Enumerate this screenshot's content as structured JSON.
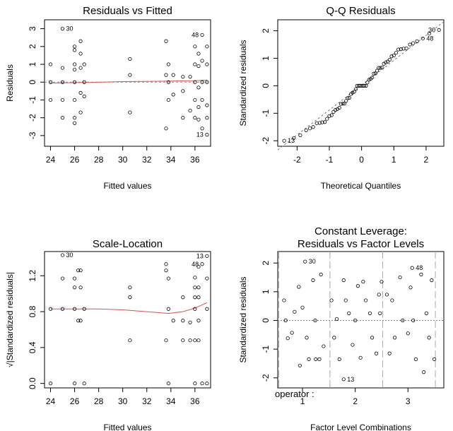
{
  "chart_data": [
    {
      "type": "scatter",
      "title": "Residuals vs Fitted",
      "xlabel": "Fitted values",
      "ylabel": "Residuals",
      "xlim": [
        23.5,
        37.3
      ],
      "ylim": [
        -3.6,
        3.5
      ],
      "xticks": [
        24,
        26,
        28,
        30,
        32,
        34,
        36
      ],
      "yticks": [
        -3,
        -2,
        -1,
        0,
        1,
        2,
        3
      ],
      "grid": false,
      "dashed_reference_y": 0,
      "smooth_line_color": "#d9534f",
      "labeled_points": [
        {
          "label": "30",
          "x": 25.0,
          "y": 3.0
        },
        {
          "label": "48",
          "x": 36.6,
          "y": 2.65
        },
        {
          "label": "13",
          "x": 37.0,
          "y": -2.95
        }
      ],
      "points": [
        [
          24,
          1.0
        ],
        [
          24,
          0.0
        ],
        [
          24,
          -1.0
        ],
        [
          25,
          3.0
        ],
        [
          25,
          0.8
        ],
        [
          25,
          0.0
        ],
        [
          25,
          -1.0
        ],
        [
          25,
          -2.0
        ],
        [
          26,
          2.0
        ],
        [
          26,
          1.8
        ],
        [
          26,
          1.0
        ],
        [
          26,
          0.7
        ],
        [
          26,
          0.0
        ],
        [
          26,
          -1.0
        ],
        [
          26,
          -2.0
        ],
        [
          26,
          -2.3
        ],
        [
          26.5,
          2.3
        ],
        [
          26.5,
          1.6
        ],
        [
          26.5,
          0.8
        ],
        [
          26.5,
          -0.6
        ],
        [
          26.5,
          -1.7
        ],
        [
          26.8,
          1.0
        ],
        [
          26.8,
          0.0
        ],
        [
          26.8,
          -0.8
        ],
        [
          30.6,
          1.3
        ],
        [
          30.6,
          0.4
        ],
        [
          30.6,
          -1.7
        ],
        [
          33.6,
          2.3
        ],
        [
          33.6,
          0.4
        ],
        [
          33.6,
          -2.6
        ],
        [
          33.8,
          1.0
        ],
        [
          33.8,
          0.0
        ],
        [
          33.8,
          -1.0
        ],
        [
          34.2,
          0.4
        ],
        [
          34.2,
          -0.7
        ],
        [
          35,
          0.3
        ],
        [
          35,
          -0.5
        ],
        [
          35,
          -2.0
        ],
        [
          35.6,
          0.3
        ],
        [
          35.6,
          -1.6
        ],
        [
          36,
          2.0
        ],
        [
          36,
          1.0
        ],
        [
          36,
          0.0
        ],
        [
          36,
          -1.0
        ],
        [
          36,
          -2.0
        ],
        [
          36.3,
          1.6
        ],
        [
          36.3,
          0.9
        ],
        [
          36.3,
          -0.3
        ],
        [
          36.3,
          -1.4
        ],
        [
          36.3,
          -2.1
        ],
        [
          36.6,
          2.65
        ],
        [
          36.6,
          1.2
        ],
        [
          36.6,
          0.0
        ],
        [
          36.6,
          -1.0
        ],
        [
          36.6,
          -2.6
        ],
        [
          37,
          2.0
        ],
        [
          37,
          1.0
        ],
        [
          37,
          0.0
        ],
        [
          37,
          -1.3
        ],
        [
          37,
          -2.0
        ],
        [
          37,
          -2.95
        ]
      ],
      "smooth_line": [
        [
          24,
          -0.05
        ],
        [
          27,
          -0.02
        ],
        [
          30,
          0.03
        ],
        [
          33,
          0.05
        ],
        [
          36,
          0.08
        ],
        [
          37,
          0.12
        ]
      ]
    },
    {
      "type": "scatter",
      "title": "Q-Q Residuals",
      "xlabel": "Theoretical Quantiles",
      "ylabel": "Standardized residuals",
      "xlim": [
        -2.6,
        2.55
      ],
      "ylim": [
        -2.2,
        2.4
      ],
      "xticks": [
        -2,
        -1,
        0,
        1,
        2
      ],
      "yticks": [
        -2,
        -1,
        0,
        1,
        2
      ],
      "grid": false,
      "reference_line": [
        [
          -2.6,
          -2.33
        ],
        [
          2.55,
          2.33
        ]
      ],
      "labeled_points": [
        {
          "label": "13",
          "x": -2.4,
          "y": -2.0
        },
        {
          "label": "48",
          "x": 1.9,
          "y": 1.72
        },
        {
          "label": "30",
          "x": 2.4,
          "y": 2.03
        }
      ],
      "points": [
        [
          -2.4,
          -2.0
        ],
        [
          -2.1,
          -1.9
        ],
        [
          -1.9,
          -1.8
        ],
        [
          -1.72,
          -1.62
        ],
        [
          -1.6,
          -1.55
        ],
        [
          -1.5,
          -1.5
        ],
        [
          -1.39,
          -1.36
        ],
        [
          -1.3,
          -1.35
        ],
        [
          -1.22,
          -1.33
        ],
        [
          -1.14,
          -1.32
        ],
        [
          -1.07,
          -1.2
        ],
        [
          -1.0,
          -1.1
        ],
        [
          -0.93,
          -1.07
        ],
        [
          -0.87,
          -0.95
        ],
        [
          -0.81,
          -0.88
        ],
        [
          -0.75,
          -0.85
        ],
        [
          -0.69,
          -0.8
        ],
        [
          -0.64,
          -0.66
        ],
        [
          -0.58,
          -0.65
        ],
        [
          -0.53,
          -0.65
        ],
        [
          -0.48,
          -0.55
        ],
        [
          -0.43,
          -0.45
        ],
        [
          -0.38,
          -0.44
        ],
        [
          -0.33,
          -0.3
        ],
        [
          -0.28,
          -0.25
        ],
        [
          -0.23,
          -0.22
        ],
        [
          -0.18,
          -0.12
        ],
        [
          -0.14,
          0.0
        ],
        [
          -0.09,
          0.0
        ],
        [
          -0.05,
          0.0
        ],
        [
          0.0,
          0.0
        ],
        [
          0.05,
          0.0
        ],
        [
          0.09,
          0.0
        ],
        [
          0.14,
          0.0
        ],
        [
          0.18,
          0.12
        ],
        [
          0.23,
          0.22
        ],
        [
          0.28,
          0.25
        ],
        [
          0.33,
          0.3
        ],
        [
          0.38,
          0.44
        ],
        [
          0.43,
          0.45
        ],
        [
          0.48,
          0.55
        ],
        [
          0.53,
          0.65
        ],
        [
          0.58,
          0.65
        ],
        [
          0.64,
          0.66
        ],
        [
          0.69,
          0.8
        ],
        [
          0.75,
          0.85
        ],
        [
          0.81,
          0.88
        ],
        [
          0.87,
          0.95
        ],
        [
          0.93,
          1.07
        ],
        [
          1.0,
          1.1
        ],
        [
          1.07,
          1.2
        ],
        [
          1.14,
          1.32
        ],
        [
          1.22,
          1.33
        ],
        [
          1.3,
          1.35
        ],
        [
          1.39,
          1.36
        ],
        [
          1.5,
          1.5
        ],
        [
          1.6,
          1.55
        ],
        [
          1.72,
          1.62
        ],
        [
          1.9,
          1.72
        ],
        [
          2.1,
          1.9
        ],
        [
          2.4,
          2.03
        ]
      ]
    },
    {
      "type": "scatter",
      "title": "Scale-Location",
      "xlabel": "Fitted values",
      "ylabel": "√|Standardized residuals|",
      "xlim": [
        23.5,
        37.3
      ],
      "ylim": [
        -0.05,
        1.47
      ],
      "xticks": [
        24,
        26,
        28,
        30,
        32,
        34,
        36
      ],
      "yticks": [
        0.0,
        0.4,
        0.8,
        1.2
      ],
      "grid": false,
      "smooth_line_color": "#d9534f",
      "labeled_points": [
        {
          "label": "30",
          "x": 25.0,
          "y": 1.43
        },
        {
          "label": "48",
          "x": 36.6,
          "y": 1.33
        },
        {
          "label": "13",
          "x": 37.0,
          "y": 1.42
        }
      ],
      "points": [
        [
          24,
          0.83
        ],
        [
          24,
          0.0
        ],
        [
          25,
          1.43
        ],
        [
          25,
          1.17
        ],
        [
          25,
          0.83
        ],
        [
          26,
          1.17
        ],
        [
          26,
          1.07
        ],
        [
          26,
          0.83
        ],
        [
          26,
          0.0
        ],
        [
          26.3,
          1.26
        ],
        [
          26.3,
          0.7
        ],
        [
          26.5,
          1.07
        ],
        [
          26.5,
          1.26
        ],
        [
          26.5,
          0.7
        ],
        [
          26.8,
          0.83
        ],
        [
          26.8,
          0.0
        ],
        [
          30.6,
          1.07
        ],
        [
          30.6,
          0.96
        ],
        [
          30.6,
          0.48
        ],
        [
          33.6,
          1.33
        ],
        [
          33.6,
          1.26
        ],
        [
          33.6,
          0.48
        ],
        [
          33.8,
          1.17
        ],
        [
          33.8,
          0.83
        ],
        [
          33.8,
          0.0
        ],
        [
          34.2,
          0.7
        ],
        [
          35,
          0.96
        ],
        [
          35,
          0.7
        ],
        [
          35,
          0.48
        ],
        [
          35.6,
          0.68
        ],
        [
          35.6,
          0.48
        ],
        [
          36,
          1.18
        ],
        [
          36,
          1.07
        ],
        [
          36,
          0.96
        ],
        [
          36,
          0.83
        ],
        [
          36,
          0.48
        ],
        [
          36,
          0.0
        ],
        [
          36.3,
          1.3
        ],
        [
          36.3,
          1.07
        ],
        [
          36.3,
          0.96
        ],
        [
          36.3,
          0.7
        ],
        [
          36.3,
          0.48
        ],
        [
          36.6,
          1.33
        ],
        [
          36.6,
          0.0
        ],
        [
          37,
          1.42
        ],
        [
          37,
          1.17
        ],
        [
          37,
          0.83
        ],
        [
          37,
          0.0
        ]
      ],
      "smooth_line": [
        [
          24,
          0.83
        ],
        [
          26,
          0.83
        ],
        [
          28,
          0.83
        ],
        [
          30,
          0.82
        ],
        [
          32,
          0.8
        ],
        [
          33.8,
          0.78
        ],
        [
          35,
          0.8
        ],
        [
          36,
          0.84
        ],
        [
          37,
          0.9
        ]
      ]
    },
    {
      "type": "scatter",
      "title": "Constant Leverage:",
      "subtitle": "Residuals vs Factor Levels",
      "xlabel": "Factor Level Combinations",
      "ylabel": "Standardized residuals",
      "factor_label": "operator :",
      "xlim": [
        0.53,
        3.68
      ],
      "ylim": [
        -2.35,
        2.4
      ],
      "xticks": [
        1,
        2,
        3
      ],
      "yticks": [
        -2,
        -1,
        0,
        1,
        2
      ],
      "grid": false,
      "level_boundaries": [
        0.55,
        1.52,
        2.52,
        3.52
      ],
      "labeled_points": [
        {
          "label": "30",
          "x": 1.05,
          "y": 2.05
        },
        {
          "label": "48",
          "x": 3.08,
          "y": 1.83
        },
        {
          "label": "13",
          "x": 1.78,
          "y": -2.05
        }
      ],
      "points": [
        [
          0.65,
          0.7
        ],
        [
          0.68,
          0.0
        ],
        [
          0.72,
          -0.62
        ],
        [
          0.8,
          -0.43
        ],
        [
          0.85,
          0.3
        ],
        [
          0.93,
          1.17
        ],
        [
          0.95,
          -1.57
        ],
        [
          1.0,
          0.45
        ],
        [
          1.05,
          2.05
        ],
        [
          1.08,
          -0.6
        ],
        [
          1.12,
          -1.35
        ],
        [
          1.2,
          1.4
        ],
        [
          1.24,
          0.0
        ],
        [
          1.25,
          -1.35
        ],
        [
          1.32,
          -1.35
        ],
        [
          1.35,
          1.6
        ],
        [
          1.4,
          -0.9
        ],
        [
          1.55,
          0.7
        ],
        [
          1.6,
          -0.6
        ],
        [
          1.65,
          0.05
        ],
        [
          1.7,
          -1.35
        ],
        [
          1.78,
          -2.05
        ],
        [
          1.78,
          1.4
        ],
        [
          1.82,
          0.7
        ],
        [
          1.88,
          0.25
        ],
        [
          1.95,
          -0.85
        ],
        [
          2.0,
          0.0
        ],
        [
          2.05,
          1.2
        ],
        [
          2.1,
          -1.3
        ],
        [
          2.15,
          1.35
        ],
        [
          2.2,
          0.7
        ],
        [
          2.28,
          0.25
        ],
        [
          2.32,
          -0.6
        ],
        [
          2.4,
          -1.15
        ],
        [
          2.45,
          0.9
        ],
        [
          2.47,
          0.25
        ],
        [
          2.5,
          1.35
        ],
        [
          2.6,
          0.9
        ],
        [
          2.65,
          -1.15
        ],
        [
          2.7,
          0.7
        ],
        [
          2.75,
          -0.6
        ],
        [
          2.85,
          1.5
        ],
        [
          2.9,
          0.0
        ],
        [
          3.0,
          -0.45
        ],
        [
          3.05,
          1.15
        ],
        [
          3.08,
          1.83
        ],
        [
          3.1,
          0.0
        ],
        [
          3.15,
          -1.35
        ],
        [
          3.25,
          1.6
        ],
        [
          3.3,
          -1.8
        ],
        [
          3.35,
          0.25
        ],
        [
          3.4,
          -0.6
        ],
        [
          3.45,
          1.4
        ],
        [
          3.5,
          -1.35
        ]
      ]
    }
  ]
}
